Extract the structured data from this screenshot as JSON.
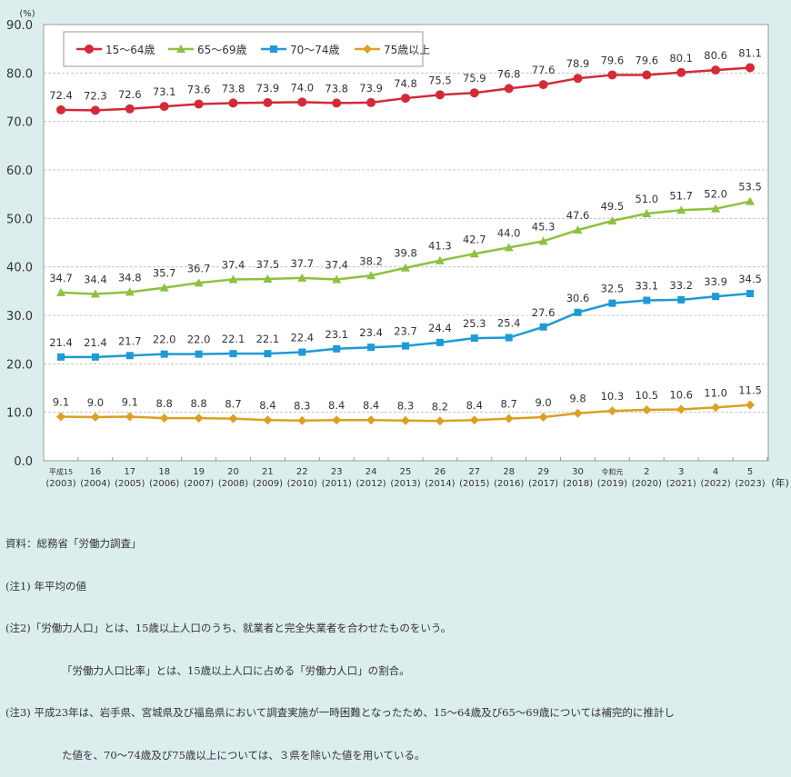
{
  "chart_data": {
    "type": "line",
    "ylabel": "(%)",
    "xlabel_unit": "(年)",
    "ylim": [
      0,
      90
    ],
    "yticks": [
      "0.0",
      "10.0",
      "20.0",
      "30.0",
      "40.0",
      "50.0",
      "60.0",
      "70.0",
      "80.0",
      "90.0"
    ],
    "grid": true,
    "legend": "top-left",
    "categories": [
      [
        "平成15",
        "(2003)"
      ],
      [
        "16",
        "(2004)"
      ],
      [
        "17",
        "(2005)"
      ],
      [
        "18",
        "(2006)"
      ],
      [
        "19",
        "(2007)"
      ],
      [
        "20",
        "(2008)"
      ],
      [
        "21",
        "(2009)"
      ],
      [
        "22",
        "(2010)"
      ],
      [
        "23",
        "(2011)"
      ],
      [
        "24",
        "(2012)"
      ],
      [
        "25",
        "(2013)"
      ],
      [
        "26",
        "(2014)"
      ],
      [
        "27",
        "(2015)"
      ],
      [
        "28",
        "(2016)"
      ],
      [
        "29",
        "(2017)"
      ],
      [
        "30",
        "(2018)"
      ],
      [
        "令和元",
        "(2019)"
      ],
      [
        "2",
        "(2020)"
      ],
      [
        "3",
        "(2021)"
      ],
      [
        "4",
        "(2022)"
      ],
      [
        "5",
        "(2023)"
      ]
    ],
    "series": [
      {
        "name": "15～64歳",
        "color": "#d42a38",
        "marker": "circle",
        "values": [
          72.4,
          72.3,
          72.6,
          73.1,
          73.6,
          73.8,
          73.9,
          74.0,
          73.8,
          73.9,
          74.8,
          75.5,
          75.9,
          76.8,
          77.6,
          78.9,
          79.6,
          79.6,
          80.1,
          80.6,
          81.1
        ]
      },
      {
        "name": "65～69歳",
        "color": "#8dc13f",
        "marker": "triangle",
        "values": [
          34.7,
          34.4,
          34.8,
          35.7,
          36.7,
          37.4,
          37.5,
          37.7,
          37.4,
          38.2,
          39.8,
          41.3,
          42.7,
          44.0,
          45.3,
          47.6,
          49.5,
          51.0,
          51.7,
          52.0,
          53.5
        ]
      },
      {
        "name": "70～74歳",
        "color": "#1e9ad6",
        "marker": "square",
        "values": [
          21.4,
          21.4,
          21.7,
          22.0,
          22.0,
          22.1,
          22.1,
          22.4,
          23.1,
          23.4,
          23.7,
          24.4,
          25.3,
          25.4,
          27.6,
          30.6,
          32.5,
          33.1,
          33.2,
          33.9,
          34.5
        ]
      },
      {
        "name": "75歳以上",
        "color": "#dba024",
        "marker": "diamond",
        "values": [
          9.1,
          9.0,
          9.1,
          8.8,
          8.8,
          8.7,
          8.4,
          8.3,
          8.4,
          8.4,
          8.3,
          8.2,
          8.4,
          8.7,
          9.0,
          9.8,
          10.3,
          10.5,
          10.6,
          11.0,
          11.5
        ]
      }
    ]
  },
  "notes": [
    "資料：総務省「労働力調査」",
    "(注1) 年平均の値",
    "(注2)「労働力人口」とは、15歳以上人口のうち、就業者と完全失業者を合わせたものをいう。",
    "「労働力人口比率」とは、15歳以上人口に占める「労働力人口」の割合。",
    "(注3) 平成23年は、岩手県、宮城県及び福島県において調査実施が一時困難となったため、15～64歳及び65～69歳については補完的に推計し",
    "た値を、70～74歳及び75歳以上については、３県を除いた値を用いている。"
  ]
}
